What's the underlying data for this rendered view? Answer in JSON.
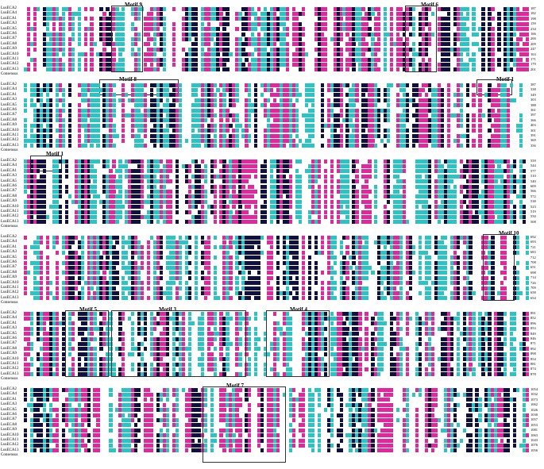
{
  "colors": {
    "identical": "#101040",
    "high": "#e0279b",
    "medium": "#2bc4c4",
    "low": "#ffffff",
    "text_dark": "#000000",
    "text_light": "#ffffff",
    "box": "#333333"
  },
  "sequence_names": [
    "LusECA2",
    "LusECA4",
    "LusECA1",
    "LusECA3",
    "LusECA5",
    "LusECA6",
    "LusECA7",
    "LusECA8",
    "LusECA9",
    "LusECA10",
    "LusECA11",
    "LusECA12",
    "LusECA13",
    "Consensus"
  ],
  "blocks": [
    {
      "end_numbers": [
        "187",
        "182",
        "198",
        "159",
        "234",
        "166",
        "200",
        "209",
        "247",
        "163",
        "171",
        "179",
        "201"
      ],
      "motifs": [
        {
          "label": "Motif 9"
        },
        {
          "label": "Motif 6"
        },
        {
          "label": "Motif 8"
        },
        {
          "label": "Motif 1"
        }
      ]
    },
    {
      "end_numbers": [
        "387",
        "338",
        "349",
        "303",
        "388",
        "361",
        "397",
        "366",
        "403",
        "301",
        "391",
        "369",
        "356"
      ],
      "motifs": [
        {
          "label": "Motif 1"
        }
      ]
    },
    {
      "end_numbers": [
        "559",
        "544",
        "577",
        "510",
        "540",
        "609",
        "566",
        "572",
        "538",
        "523",
        "519",
        "550",
        "508"
      ],
      "motifs": []
    },
    {
      "end_numbers": [
        "692",
        "693",
        "721",
        "683",
        "712",
        "708",
        "651",
        "698",
        "714",
        "726",
        "709",
        "658",
        "654"
      ],
      "motifs": [
        {
          "label": "Motif 10"
        }
      ]
    },
    {
      "end_numbers": [
        "891",
        "852",
        "896",
        "853",
        "849",
        "846",
        "871",
        "892",
        "898",
        "854",
        "881",
        "874",
        "878"
      ],
      "motifs": [
        {
          "label": "Motif 5"
        },
        {
          "label": "Motif 3"
        },
        {
          "label": "Motif 4"
        }
      ]
    },
    {
      "end_numbers": [
        "1054",
        "1032",
        "1073",
        "1062",
        "1026",
        "1030",
        "1057",
        "1053",
        "1081",
        "1063",
        "1043",
        "1076",
        "1056"
      ],
      "motifs": [
        {
          "label": "Motif 7"
        }
      ]
    }
  ]
}
